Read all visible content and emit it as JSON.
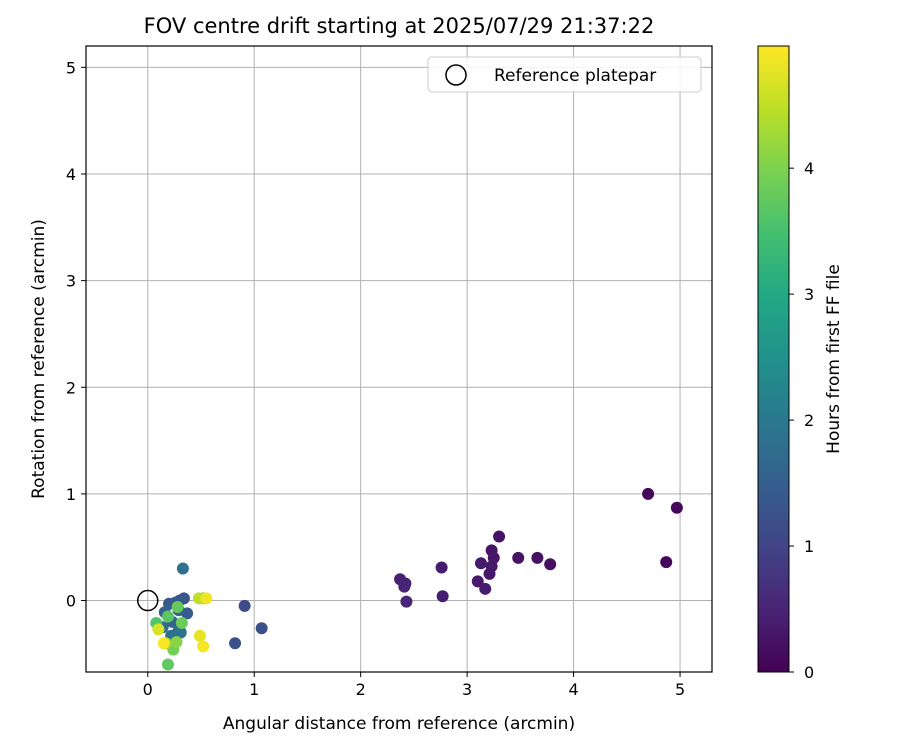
{
  "chart_data": {
    "type": "scatter",
    "title": "FOV centre drift starting at 2025/07/29 21:37:22",
    "xlabel": "Angular distance from reference (arcmin)",
    "ylabel": "Rotation from reference (arcmin)",
    "xlim": [
      -0.58,
      5.3
    ],
    "ylim": [
      -0.67,
      5.2
    ],
    "xticks": [
      0,
      1,
      2,
      3,
      4,
      5
    ],
    "yticks": [
      0,
      1,
      2,
      3,
      4,
      5
    ],
    "grid": true,
    "legend": {
      "placement": "upper-right",
      "entries": [
        {
          "label": "Reference platepar",
          "marker": "open-circle"
        }
      ]
    },
    "reference_point": {
      "x": 0,
      "y": 0,
      "label": "Reference platepar"
    },
    "colorbar": {
      "label": "Hours from first FF file",
      "colormap": "viridis",
      "range": [
        0,
        4.97
      ],
      "ticks": [
        0,
        1,
        2,
        3,
        4
      ]
    },
    "points": [
      {
        "x": 4.7,
        "y": 1.0,
        "c": 0.08
      },
      {
        "x": 4.97,
        "y": 0.87,
        "c": 0.1
      },
      {
        "x": 4.87,
        "y": 0.36,
        "c": 0.12
      },
      {
        "x": 3.78,
        "y": 0.34,
        "c": 0.2
      },
      {
        "x": 3.66,
        "y": 0.4,
        "c": 0.22
      },
      {
        "x": 3.48,
        "y": 0.4,
        "c": 0.25
      },
      {
        "x": 3.3,
        "y": 0.6,
        "c": 0.27
      },
      {
        "x": 3.23,
        "y": 0.47,
        "c": 0.28
      },
      {
        "x": 3.25,
        "y": 0.4,
        "c": 0.3
      },
      {
        "x": 3.23,
        "y": 0.32,
        "c": 0.32
      },
      {
        "x": 3.21,
        "y": 0.25,
        "c": 0.33
      },
      {
        "x": 3.13,
        "y": 0.35,
        "c": 0.35
      },
      {
        "x": 3.1,
        "y": 0.18,
        "c": 0.36
      },
      {
        "x": 3.17,
        "y": 0.11,
        "c": 0.37
      },
      {
        "x": 2.76,
        "y": 0.31,
        "c": 0.4
      },
      {
        "x": 2.77,
        "y": 0.04,
        "c": 0.42
      },
      {
        "x": 2.37,
        "y": 0.2,
        "c": 0.45
      },
      {
        "x": 2.42,
        "y": 0.16,
        "c": 0.47
      },
      {
        "x": 2.41,
        "y": 0.13,
        "c": 0.5
      },
      {
        "x": 2.43,
        "y": -0.01,
        "c": 0.52
      },
      {
        "x": 0.91,
        "y": -0.05,
        "c": 1.15
      },
      {
        "x": 1.07,
        "y": -0.26,
        "c": 1.2
      },
      {
        "x": 0.82,
        "y": -0.4,
        "c": 1.22
      },
      {
        "x": 0.33,
        "y": 0.3,
        "c": 1.85
      },
      {
        "x": 0.34,
        "y": 0.02,
        "c": 1.3
      },
      {
        "x": 0.3,
        "y": 0.0,
        "c": 1.35
      },
      {
        "x": 0.26,
        "y": -0.02,
        "c": 1.38
      },
      {
        "x": 0.2,
        "y": -0.03,
        "c": 1.4
      },
      {
        "x": 0.37,
        "y": -0.12,
        "c": 1.45
      },
      {
        "x": 0.29,
        "y": -0.09,
        "c": 1.5
      },
      {
        "x": 0.16,
        "y": -0.11,
        "c": 1.55
      },
      {
        "x": 0.23,
        "y": -0.2,
        "c": 1.62
      },
      {
        "x": 0.29,
        "y": -0.28,
        "c": 1.7
      },
      {
        "x": 0.14,
        "y": -0.25,
        "c": 1.75
      },
      {
        "x": 0.22,
        "y": -0.33,
        "c": 1.8
      },
      {
        "x": 0.31,
        "y": -0.3,
        "c": 1.9
      },
      {
        "x": 0.08,
        "y": -0.21,
        "c": 3.6
      },
      {
        "x": 0.19,
        "y": -0.15,
        "c": 3.7
      },
      {
        "x": 0.28,
        "y": -0.06,
        "c": 3.8
      },
      {
        "x": 0.32,
        "y": -0.21,
        "c": 3.85
      },
      {
        "x": 0.19,
        "y": -0.6,
        "c": 3.75
      },
      {
        "x": 0.24,
        "y": -0.46,
        "c": 3.9
      },
      {
        "x": 0.52,
        "y": 0.02,
        "c": 4.0
      },
      {
        "x": 0.27,
        "y": -0.39,
        "c": 4.1
      },
      {
        "x": 0.17,
        "y": -0.4,
        "c": 4.2
      },
      {
        "x": 0.48,
        "y": 0.02,
        "c": 4.5
      },
      {
        "x": 0.55,
        "y": 0.02,
        "c": 4.85
      },
      {
        "x": 0.1,
        "y": -0.27,
        "c": 4.7
      },
      {
        "x": 0.49,
        "y": -0.33,
        "c": 4.8
      },
      {
        "x": 0.52,
        "y": -0.43,
        "c": 4.9
      },
      {
        "x": 0.15,
        "y": -0.4,
        "c": 4.95
      }
    ]
  }
}
